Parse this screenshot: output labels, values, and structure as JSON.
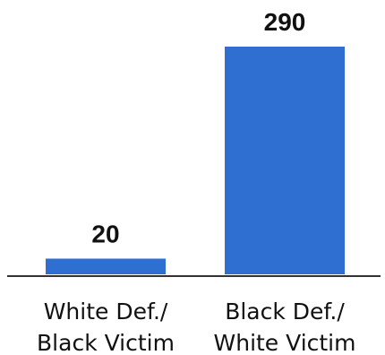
{
  "chart_data": {
    "type": "bar",
    "categories": [
      [
        "White Def./",
        "Black Victim"
      ],
      [
        "Black Def./",
        "White Victim"
      ]
    ],
    "values": [
      20,
      290
    ],
    "data_labels": [
      "20",
      "290"
    ],
    "title": "",
    "xlabel": "",
    "ylabel": "",
    "ylim": [
      0,
      290
    ],
    "grid": false,
    "legend": "none",
    "colors": {
      "bar": "#2f6fd1",
      "axis": "#333333",
      "text": "#111111"
    }
  }
}
